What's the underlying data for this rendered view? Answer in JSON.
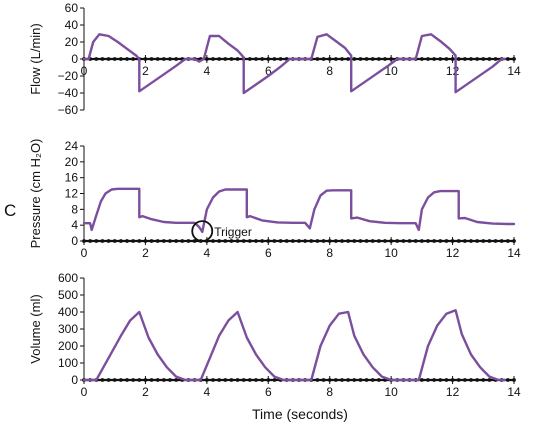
{
  "panel_letter": "C",
  "trigger_label": "Trigger",
  "xlabel": "Time (seconds)",
  "colors": {
    "trace": "#7b4f9e",
    "axis": "#111111"
  },
  "chart_data": [
    {
      "type": "line",
      "ylabel": "Flow (L/min)",
      "xlim": [
        0,
        14
      ],
      "ylim": [
        -60,
        60
      ],
      "x_ticks": [
        0,
        2,
        4,
        6,
        8,
        10,
        12,
        14
      ],
      "x_tick_labels": [
        "0",
        "2",
        "4",
        "6",
        "8",
        "10",
        "12",
        "14"
      ],
      "y_ticks": [
        -60,
        -40,
        -20,
        0,
        20,
        40,
        60
      ],
      "y_tick_labels": [
        "−60",
        "−40",
        "−20",
        "0",
        "20",
        "40",
        "60"
      ],
      "series": [
        {
          "x": [
            0,
            0.15,
            0.15,
            0.3,
            0.5,
            0.8,
            1.1,
            1.4,
            1.7,
            1.8,
            1.8,
            2.2,
            2.6,
            3.0,
            3.3,
            3.4,
            3.6,
            3.75,
            3.9,
            4.1,
            4.4,
            4.7,
            5.0,
            5.2,
            5.2,
            5.6,
            6.0,
            6.4,
            6.7,
            6.8,
            7.2,
            7.4,
            7.6,
            7.9,
            8.2,
            8.5,
            8.7,
            8.7,
            9.1,
            9.5,
            9.9,
            10.2,
            10.3,
            10.6,
            10.8,
            11.0,
            11.3,
            11.6,
            11.9,
            12.1,
            12.1,
            12.5,
            12.9,
            13.3,
            13.6,
            13.7
          ],
          "y": [
            0,
            0,
            0,
            20,
            29,
            27,
            20,
            12,
            4,
            0,
            -38,
            -28,
            -18,
            -8,
            0,
            0,
            0,
            -3,
            0,
            27,
            27,
            18,
            10,
            2,
            -40,
            -30,
            -20,
            -9,
            0,
            0,
            0,
            0,
            26,
            29,
            21,
            13,
            4,
            -38,
            -28,
            -18,
            -8,
            0,
            0,
            0,
            0,
            27,
            29,
            21,
            12,
            4,
            -39,
            -29,
            -19,
            -9,
            0,
            0
          ]
        }
      ]
    },
    {
      "type": "line",
      "ylabel": "Pressure (cm H₂O)",
      "xlim": [
        0,
        14
      ],
      "ylim": [
        0,
        24
      ],
      "x_ticks": [
        0,
        2,
        4,
        6,
        8,
        10,
        12,
        14
      ],
      "x_tick_labels": [
        "0",
        "2",
        "4",
        "6",
        "8",
        "10",
        "12",
        "14"
      ],
      "y_ticks": [
        0,
        4,
        8,
        12,
        16,
        20,
        24
      ],
      "y_tick_labels": [
        "0",
        "4",
        "8",
        "12",
        "16",
        "20",
        "24"
      ],
      "annotations": [
        {
          "text": "Trigger",
          "x": 3.85,
          "y": 2.5
        }
      ],
      "series": [
        {
          "x": [
            0,
            0.2,
            0.25,
            0.4,
            0.55,
            0.7,
            0.9,
            1.1,
            1.8,
            1.8,
            1.9,
            2.2,
            2.6,
            3.0,
            3.6,
            3.75,
            3.85,
            4.0,
            4.2,
            4.4,
            4.6,
            4.8,
            5.3,
            5.3,
            5.4,
            5.8,
            6.3,
            6.8,
            7.2,
            7.35,
            7.5,
            7.7,
            7.9,
            8.1,
            8.7,
            8.7,
            8.9,
            9.3,
            9.8,
            10.3,
            10.8,
            10.9,
            11.0,
            11.2,
            11.4,
            11.6,
            12.2,
            12.2,
            12.4,
            12.8,
            13.3,
            13.8,
            14.0
          ],
          "y": [
            4.5,
            4.5,
            2.8,
            6.5,
            10,
            12,
            13,
            13.2,
            13.2,
            6,
            6.3,
            5.5,
            4.8,
            4.6,
            4.6,
            3.5,
            2.3,
            8,
            11,
            12.5,
            13,
            13,
            13,
            6,
            6.3,
            5.2,
            4.7,
            4.6,
            4.6,
            3.2,
            8,
            11.5,
            12.7,
            12.8,
            12.8,
            5.7,
            5.9,
            5,
            4.6,
            4.5,
            4.5,
            2.8,
            8,
            11,
            12.3,
            12.6,
            12.6,
            5.7,
            5.8,
            4.8,
            4.4,
            4.3,
            4.3
          ]
        }
      ]
    },
    {
      "type": "line",
      "ylabel": "Volume (ml)",
      "xlim": [
        0,
        14
      ],
      "ylim": [
        0,
        600
      ],
      "x_ticks": [
        0,
        2,
        4,
        6,
        8,
        10,
        12,
        14
      ],
      "x_tick_labels": [
        "0",
        "2",
        "4",
        "6",
        "8",
        "10",
        "12",
        "14"
      ],
      "y_ticks": [
        0,
        100,
        200,
        300,
        400,
        500,
        600
      ],
      "y_tick_labels": [
        "0",
        "100",
        "200",
        "300",
        "400",
        "500",
        "600"
      ],
      "series": [
        {
          "x": [
            0,
            0.4,
            0.8,
            1.2,
            1.5,
            1.8,
            2.1,
            2.4,
            2.7,
            3.0,
            3.3,
            3.8,
            4.1,
            4.4,
            4.7,
            5.0,
            5.3,
            5.6,
            5.9,
            6.2,
            6.5,
            6.8,
            7.4,
            7.7,
            8.0,
            8.3,
            8.6,
            8.8,
            9.1,
            9.4,
            9.7,
            10.0,
            10.3,
            10.9,
            11.2,
            11.5,
            11.8,
            12.1,
            12.3,
            12.6,
            12.9,
            13.2,
            13.5,
            13.7
          ],
          "y": [
            0,
            0,
            130,
            260,
            350,
            400,
            250,
            150,
            75,
            20,
            0,
            0,
            130,
            260,
            350,
            400,
            250,
            150,
            75,
            20,
            0,
            0,
            0,
            200,
            320,
            390,
            400,
            260,
            150,
            75,
            20,
            0,
            0,
            0,
            200,
            320,
            390,
            410,
            270,
            150,
            75,
            20,
            0,
            0
          ]
        }
      ]
    }
  ]
}
